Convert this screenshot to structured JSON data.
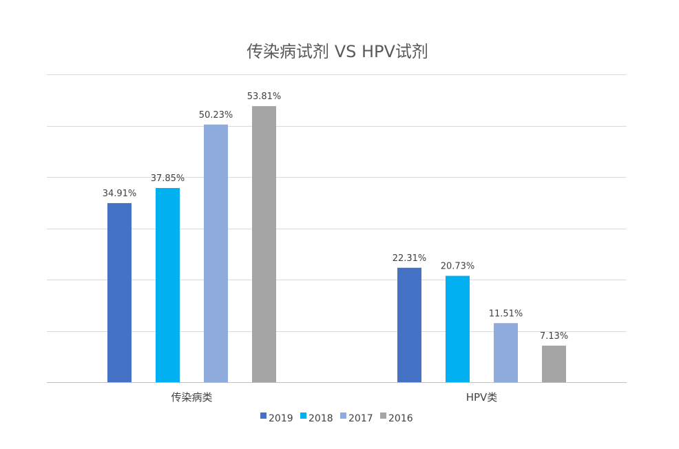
{
  "chart_data": {
    "type": "bar",
    "title": "传染病试剂  VS HPV试剂",
    "categories": [
      "传染病类",
      "HPV类"
    ],
    "series": [
      {
        "name": "2019",
        "values": [
          34.91,
          22.31
        ],
        "labels": [
          "34.91%",
          "22.31%"
        ],
        "color": "#4472C4"
      },
      {
        "name": "2018",
        "values": [
          37.85,
          20.73
        ],
        "labels": [
          "37.85%",
          "20.73%"
        ],
        "color": "#00B0F0"
      },
      {
        "name": "2017",
        "values": [
          50.23,
          11.51
        ],
        "labels": [
          "50.23%",
          "11.51%"
        ],
        "color": "#8FAADC"
      },
      {
        "name": "2016",
        "values": [
          53.81,
          7.13
        ],
        "labels": [
          "53.81%",
          "7.13%"
        ],
        "color": "#A5A5A5"
      }
    ],
    "ylim": [
      0,
      60
    ],
    "y_gridlines": [
      0,
      10,
      20,
      30,
      40,
      50,
      60
    ],
    "y_tick_labels_shown": false,
    "grid": true,
    "legend": "bottom",
    "xlabel": "",
    "ylabel": ""
  }
}
